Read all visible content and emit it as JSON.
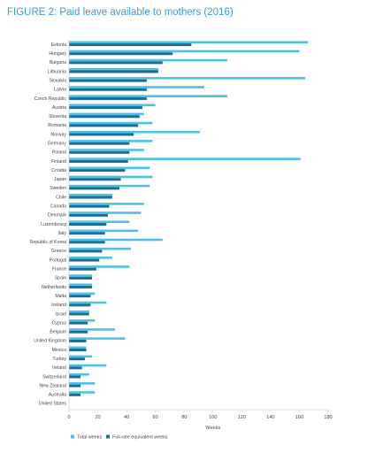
{
  "title": "FIGURE 2: Paid leave available to mothers (2016)",
  "colors": {
    "total": "#4ec0e8",
    "fte": "#1a6e94",
    "axis": "#c8c8c8",
    "title": "#3a9ad4"
  },
  "chart_data": {
    "type": "bar",
    "orientation": "horizontal",
    "title": "FIGURE 2: Paid leave available to mothers (2016)",
    "xlabel": "Weeks",
    "ylabel": "",
    "xlim": [
      0,
      180
    ],
    "xticks": [
      0,
      20,
      40,
      60,
      80,
      100,
      120,
      140,
      160,
      180
    ],
    "grid": false,
    "legend": "bottom",
    "categories": [
      "Estonia",
      "Hungary",
      "Bulgaria",
      "Lithuania",
      "Slovakia",
      "Latvia",
      "Czech Republic",
      "Austria",
      "Slovenia",
      "Romania",
      "Norway",
      "Germany",
      "Poland",
      "Finland",
      "Croatia",
      "Japan",
      "Sweden",
      "Chile",
      "Canada",
      "Denmark",
      "Luxembourg",
      "Italy",
      "Republic of Korea",
      "Greece",
      "Portugal",
      "France",
      "Spain",
      "Netherlands",
      "Malta",
      "Iceland",
      "Israel",
      "Cyprus",
      "Belgium",
      "United Kingdom",
      "Mexico",
      "Turkey",
      "Ireland",
      "Switzerland",
      "New Zealand",
      "Australia",
      "United States"
    ],
    "series": [
      {
        "name": "Total weeks",
        "values": [
          166,
          160,
          110,
          62,
          164,
          94,
          110,
          60,
          52,
          58,
          91,
          58,
          52,
          161,
          56,
          58,
          56,
          30,
          52,
          50,
          42,
          48,
          65,
          43,
          30,
          42,
          16,
          16,
          18,
          26,
          14,
          18,
          32,
          39,
          12,
          16,
          26,
          14,
          18,
          18,
          0
        ]
      },
      {
        "name": "Full-rate equivalent weeks",
        "values": [
          85,
          72,
          65,
          62,
          54,
          54,
          54,
          51,
          49,
          48,
          45,
          42,
          42,
          41,
          39,
          36,
          35,
          30,
          28,
          27,
          26,
          25,
          25,
          23,
          21,
          19,
          16,
          16,
          15,
          15,
          14,
          13,
          13,
          12,
          12,
          11,
          9,
          8,
          8,
          8,
          0
        ]
      }
    ]
  }
}
